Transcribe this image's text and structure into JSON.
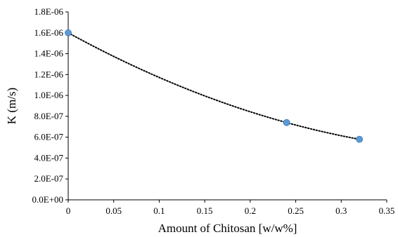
{
  "chart_data": {
    "type": "scatter",
    "xlabel": "Amount of Chitosan [w/w%]",
    "ylabel": "K (m/s)",
    "xlim": [
      0,
      0.35
    ],
    "ylim": [
      0,
      1.8e-06
    ],
    "grid": false,
    "legend": "none",
    "x_ticks": [
      "0",
      "0.05",
      "0.1",
      "0.15",
      "0.2",
      "0.25",
      "0.3",
      "0.35"
    ],
    "y_ticks": [
      "0.0E+00",
      "2.0E-07",
      "4.0E-07",
      "6.0E-07",
      "8.0E-07",
      "1.0E-06",
      "1.2E-06",
      "1.4E-06",
      "1.6E-06",
      "1.8E-06"
    ],
    "series": [
      {
        "x": [
          0,
          0.24,
          0.32
        ],
        "y": [
          1.6e-06,
          7.4e-07,
          5.8e-07
        ],
        "color": "#5b9bd5"
      }
    ],
    "trendline": {
      "type": "polynomial",
      "color": "#000000"
    }
  }
}
